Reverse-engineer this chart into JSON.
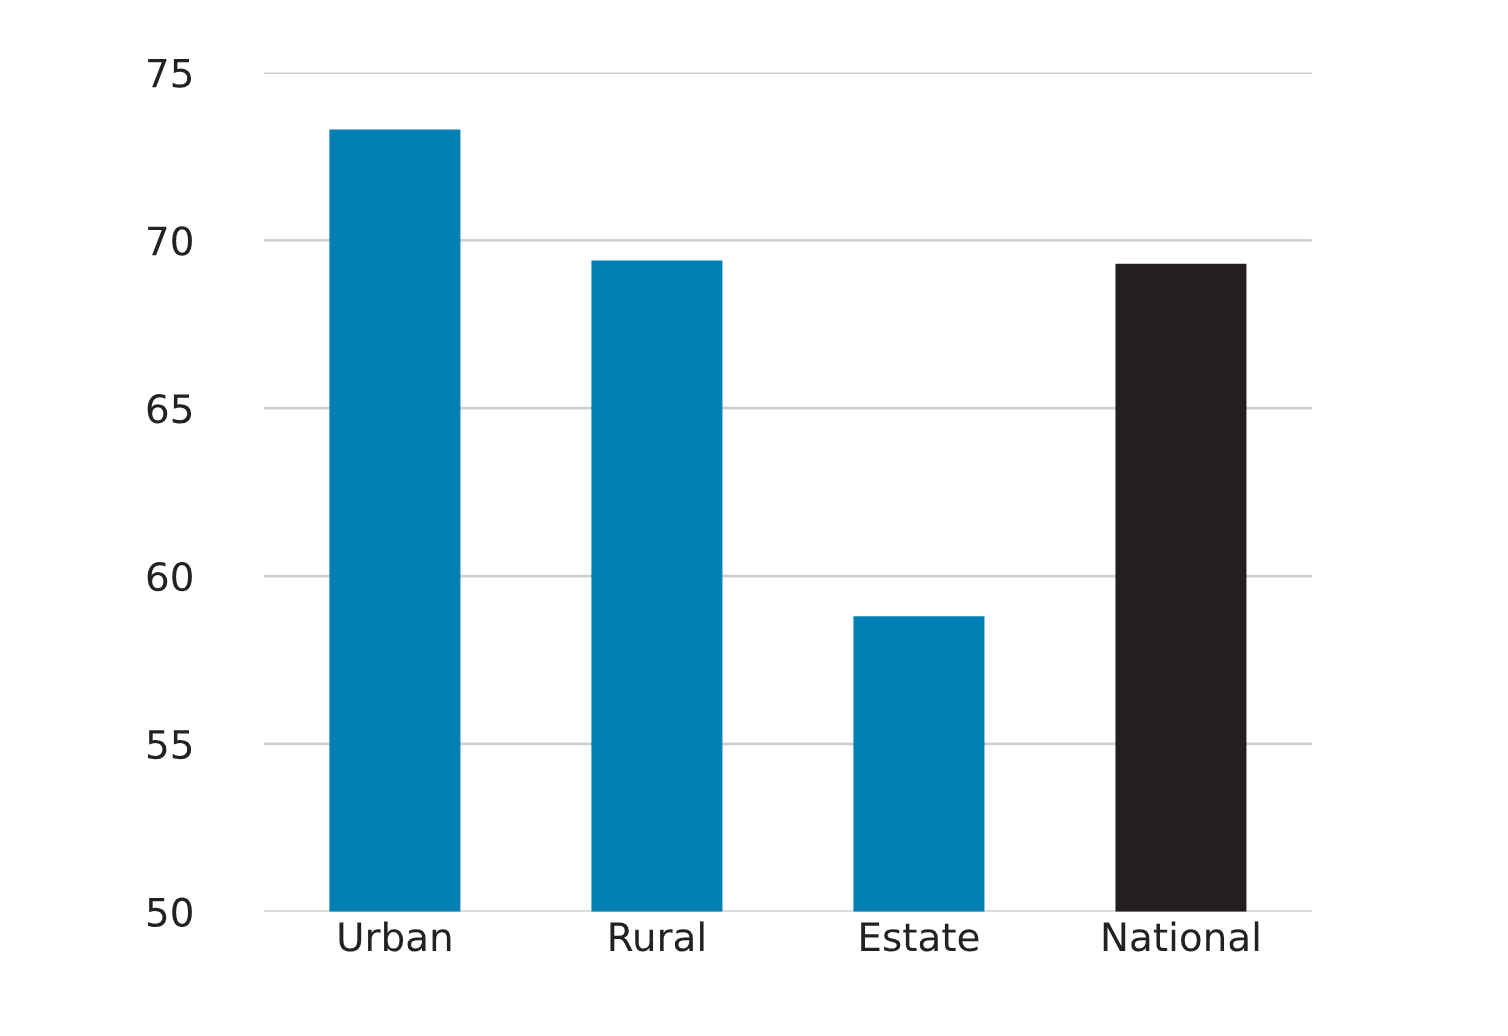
{
  "chart_data": {
    "type": "bar",
    "categories": [
      "Urban",
      "Rural",
      "Estate",
      "National"
    ],
    "values": [
      73.3,
      69.4,
      58.8,
      69.3
    ],
    "colors": [
      "#0080b4",
      "#0080b4",
      "#0080b4",
      "#231f20"
    ],
    "ylim": [
      50,
      75
    ],
    "yticks": [
      50,
      55,
      60,
      65,
      70,
      75
    ],
    "grid": "y"
  }
}
